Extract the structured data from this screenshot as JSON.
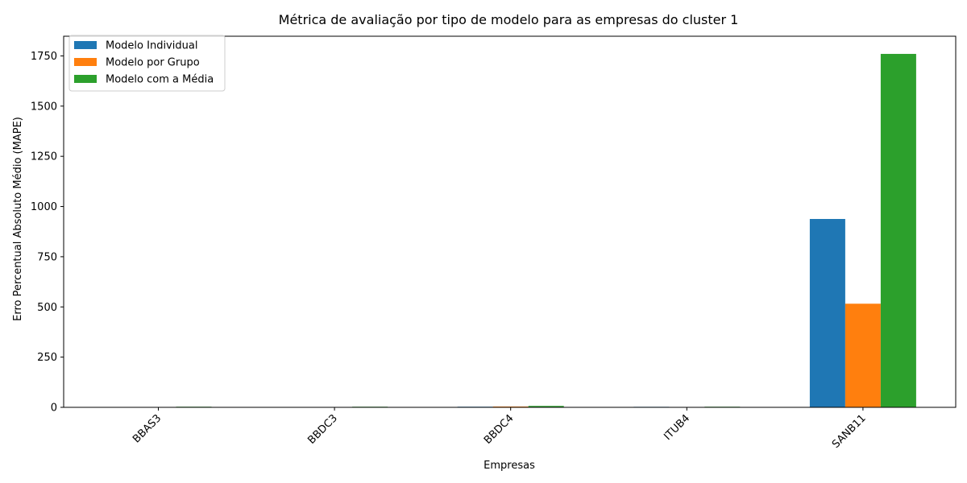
{
  "chart_data": {
    "type": "bar",
    "title": "Métrica de avaliação por tipo de modelo para as empresas do cluster 1",
    "xlabel": "Empresas",
    "ylabel": "Erro Percentual Absoluto Médio (MAPE)",
    "categories": [
      "BBAS3",
      "BBDC3",
      "BBDC4",
      "ITUB4",
      "SANB11"
    ],
    "series": [
      {
        "name": "Modelo Individual",
        "color": "#1f77b4",
        "values": [
          0.5,
          0.5,
          3,
          2.5,
          938
        ]
      },
      {
        "name": "Modelo por Grupo",
        "color": "#ff7f0e",
        "values": [
          0.5,
          0.5,
          4,
          0.5,
          516
        ]
      },
      {
        "name": "Modelo com a Média",
        "color": "#2ca02c",
        "values": [
          3,
          3,
          7,
          3,
          1760
        ]
      }
    ],
    "ylim": [
      0,
      1848
    ],
    "yticks": [
      0,
      250,
      500,
      750,
      1000,
      1250,
      1500,
      1750
    ],
    "ytick_labels": [
      "0",
      "250",
      "500",
      "750",
      "1000",
      "1250",
      "1500",
      "1750"
    ],
    "grid": false,
    "legend_position": "top-left"
  }
}
